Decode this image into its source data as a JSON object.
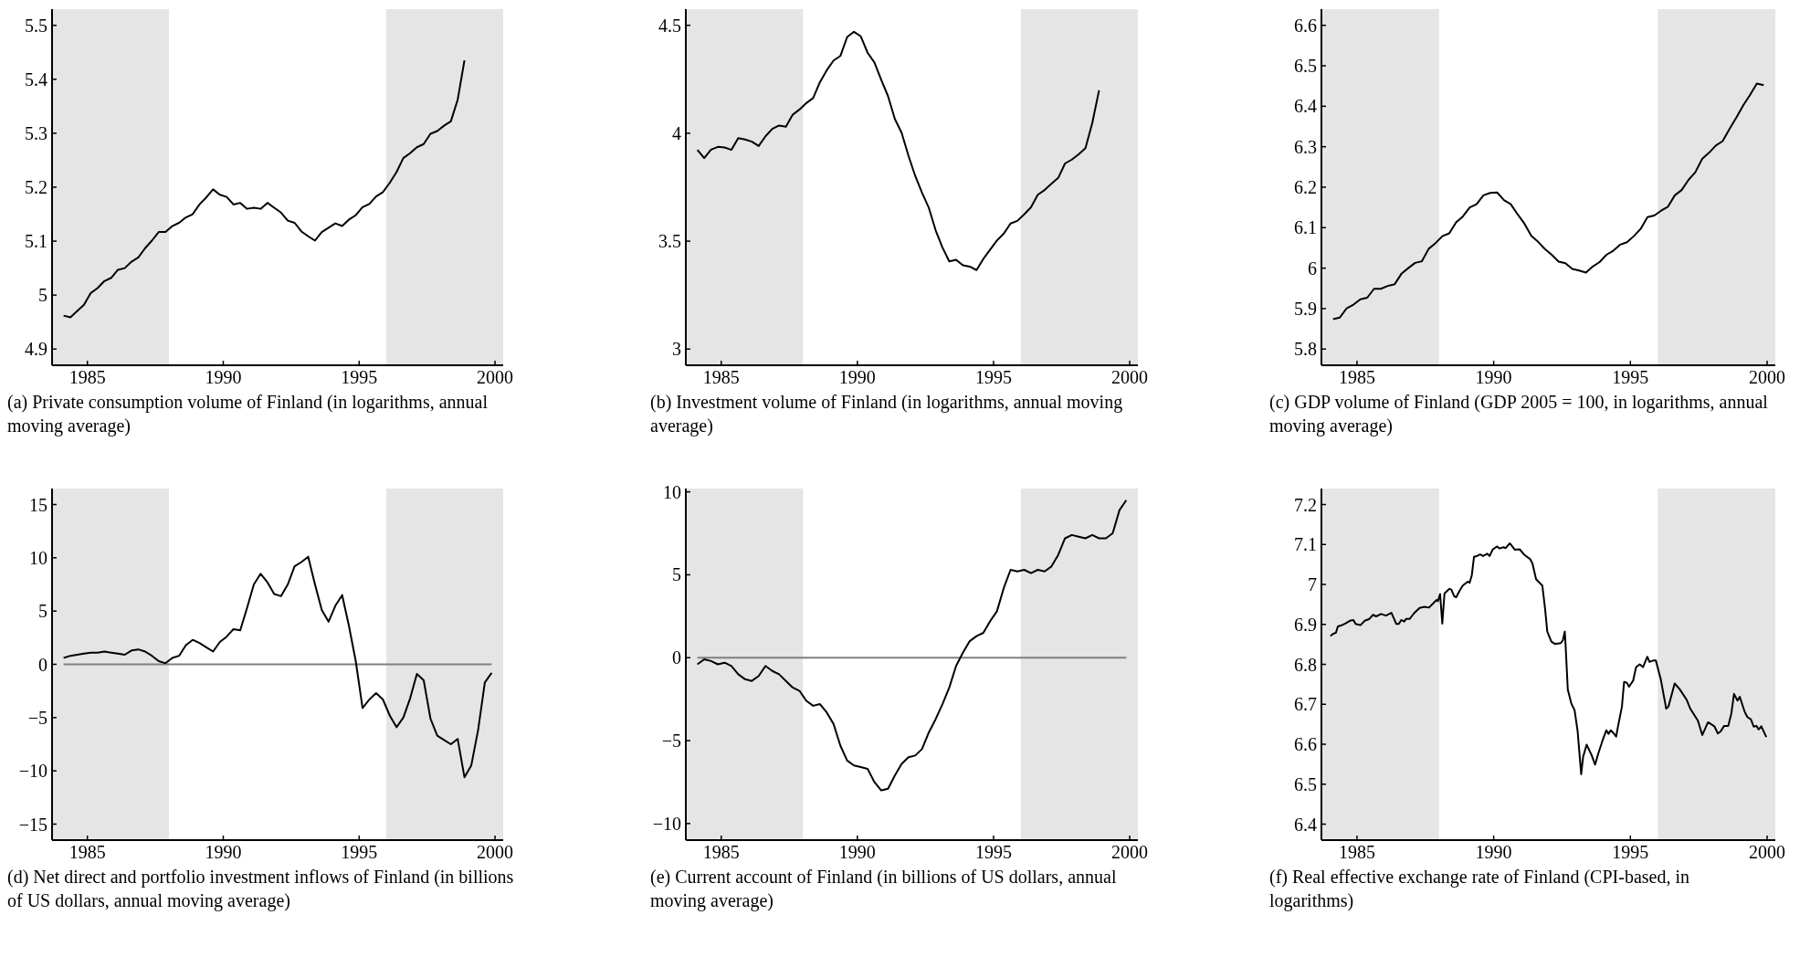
{
  "chart_data": [
    {
      "type": "line",
      "title": "(a) Private consumption volume of Finland (in logarithms, annual moving average)",
      "xlim": [
        1983.7,
        2000.3
      ],
      "xticks": [
        1985,
        1990,
        1995,
        2000
      ],
      "ylim": [
        4.87,
        5.53
      ],
      "yticks": [
        4.9,
        5,
        5.1,
        5.2,
        5.3,
        5.4,
        5.5
      ],
      "bands": [
        {
          "axis": "x",
          "from": 1983.7,
          "to": 1988,
          "color": "#e5e5e5"
        },
        {
          "axis": "x",
          "from": 1996,
          "to": 2000.3,
          "color": "#e5e5e5"
        }
      ],
      "series": [
        {
          "color": "#000000",
          "x": [
            1984.125,
            1984.375,
            1984.875,
            1985.125,
            1985.375,
            1985.625,
            1985.875,
            1986.125,
            1986.375,
            1986.625,
            1986.875,
            1987.125,
            1987.375,
            1987.625,
            1987.875,
            1988.125,
            1988.375,
            1988.625,
            1988.875,
            1989.125,
            1989.375,
            1989.625,
            1989.875,
            1990.125,
            1990.375,
            1990.625,
            1990.875,
            1991.125,
            1991.375,
            1991.625,
            1991.875,
            1992.125,
            1992.375,
            1992.625,
            1992.875,
            1993.125,
            1993.375,
            1993.625,
            1993.875,
            1994.125,
            1994.375,
            1994.625,
            1994.875,
            1995.125,
            1995.375,
            1995.625,
            1995.875,
            1996.125,
            1996.375,
            1996.625,
            1996.875,
            1997.125,
            1997.375,
            1997.625,
            1997.875,
            1998.125,
            1998.375,
            1998.625,
            1998.875
          ],
          "values": [
            4.962,
            4.959,
            4.982,
            5.004,
            5.013,
            5.026,
            5.032,
            5.047,
            5.05,
            5.062,
            5.07,
            5.087,
            5.101,
            5.117,
            5.117,
            5.128,
            5.134,
            5.144,
            5.15,
            5.168,
            5.181,
            5.196,
            5.186,
            5.182,
            5.168,
            5.171,
            5.16,
            5.162,
            5.16,
            5.171,
            5.162,
            5.153,
            5.138,
            5.134,
            5.118,
            5.109,
            5.101,
            5.117,
            5.125,
            5.133,
            5.128,
            5.14,
            5.148,
            5.163,
            5.169,
            5.183,
            5.191,
            5.208,
            5.228,
            5.254,
            5.263,
            5.274,
            5.28,
            5.299,
            5.304,
            5.314,
            5.322,
            5.362,
            5.435
          ]
        }
      ]
    },
    {
      "type": "line",
      "title": "(b) Investment volume of Finland (in logarithms, annual moving average)",
      "xlim": [
        1983.7,
        2000.3
      ],
      "xticks": [
        1985,
        1990,
        1995,
        2000
      ],
      "ylim": [
        2.925,
        4.575
      ],
      "yticks": [
        3,
        3.5,
        4,
        4.5
      ],
      "bands": [
        {
          "axis": "x",
          "from": 1983.7,
          "to": 1988,
          "color": "#e5e5e5"
        },
        {
          "axis": "x",
          "from": 1996,
          "to": 2000.3,
          "color": "#e5e5e5"
        }
      ],
      "series": [
        {
          "color": "#000000",
          "x": [
            1984.125,
            1984.375,
            1984.625,
            1984.875,
            1985.125,
            1985.375,
            1985.625,
            1985.875,
            1986.125,
            1986.375,
            1986.625,
            1986.875,
            1987.125,
            1987.375,
            1987.625,
            1987.875,
            1988.125,
            1988.375,
            1988.625,
            1988.875,
            1989.125,
            1989.375,
            1989.625,
            1989.875,
            1990.125,
            1990.375,
            1990.625,
            1990.875,
            1991.125,
            1991.375,
            1991.625,
            1991.875,
            1992.125,
            1992.375,
            1992.625,
            1992.875,
            1993.125,
            1993.375,
            1993.625,
            1993.875,
            1994.125,
            1994.375,
            1994.625,
            1994.875,
            1995.125,
            1995.375,
            1995.625,
            1995.875,
            1996.125,
            1996.375,
            1996.625,
            1996.875,
            1997.125,
            1997.375,
            1997.625,
            1997.875,
            1998.125,
            1998.375,
            1998.625,
            1998.875
          ],
          "values": [
            3.923,
            3.885,
            3.924,
            3.937,
            3.934,
            3.923,
            3.977,
            3.971,
            3.961,
            3.941,
            3.986,
            4.02,
            4.036,
            4.03,
            4.086,
            4.11,
            4.14,
            4.163,
            4.237,
            4.292,
            4.337,
            4.358,
            4.446,
            4.47,
            4.449,
            4.373,
            4.328,
            4.248,
            4.172,
            4.066,
            4.002,
            3.896,
            3.802,
            3.724,
            3.654,
            3.55,
            3.47,
            3.406,
            3.414,
            3.388,
            3.382,
            3.366,
            3.418,
            3.461,
            3.503,
            3.535,
            3.582,
            3.594,
            3.624,
            3.657,
            3.715,
            3.737,
            3.766,
            3.793,
            3.86,
            3.878,
            3.902,
            3.931,
            4.047,
            4.199
          ]
        }
      ]
    },
    {
      "type": "line",
      "title": "(c) GDP volume of Finland (GDP 2005 = 100, in logarithms, annual moving average)",
      "xlim": [
        1983.7,
        2000.3
      ],
      "xticks": [
        1985,
        1990,
        1995,
        2000
      ],
      "ylim": [
        5.76,
        6.64
      ],
      "yticks": [
        5.8,
        5.9,
        6,
        6.1,
        6.2,
        6.3,
        6.4,
        6.5,
        6.6
      ],
      "bands": [
        {
          "axis": "x",
          "from": 1983.7,
          "to": 1988,
          "color": "#e5e5e5"
        },
        {
          "axis": "x",
          "from": 1996,
          "to": 2000.3,
          "color": "#e5e5e5"
        }
      ],
      "series": [
        {
          "color": "#000000",
          "x": [
            1984.125,
            1984.375,
            1984.625,
            1984.875,
            1985.125,
            1985.375,
            1985.625,
            1985.875,
            1986.125,
            1986.375,
            1986.625,
            1986.875,
            1987.125,
            1987.375,
            1987.625,
            1987.875,
            1988.125,
            1988.375,
            1988.625,
            1988.875,
            1989.125,
            1989.375,
            1989.625,
            1989.875,
            1990.125,
            1990.375,
            1990.625,
            1990.875,
            1991.125,
            1991.375,
            1991.625,
            1991.875,
            1992.125,
            1992.375,
            1992.625,
            1992.875,
            1993.125,
            1993.375,
            1993.625,
            1993.875,
            1994.125,
            1994.375,
            1994.625,
            1994.875,
            1995.125,
            1995.375,
            1995.625,
            1995.875,
            1996.125,
            1996.375,
            1996.625,
            1996.875,
            1997.125,
            1997.375,
            1997.625,
            1997.875,
            1998.125,
            1998.375,
            1998.625,
            1998.875,
            1999.125,
            1999.375,
            1999.625,
            1999.875
          ],
          "values": [
            5.874,
            5.878,
            5.901,
            5.91,
            5.923,
            5.927,
            5.949,
            5.949,
            5.956,
            5.96,
            5.986,
            6.0,
            6.013,
            6.017,
            6.048,
            6.062,
            6.079,
            6.086,
            6.113,
            6.128,
            6.15,
            6.158,
            6.18,
            6.186,
            6.187,
            6.168,
            6.158,
            6.133,
            6.11,
            6.08,
            6.065,
            6.047,
            6.033,
            6.016,
            6.012,
            5.998,
            5.994,
            5.989,
            6.004,
            6.015,
            6.033,
            6.043,
            6.058,
            6.064,
            6.079,
            6.097,
            6.126,
            6.13,
            6.142,
            6.152,
            6.18,
            6.193,
            6.218,
            6.237,
            6.27,
            6.285,
            6.303,
            6.314,
            6.344,
            6.372,
            6.402,
            6.428,
            6.456,
            6.452
          ]
        }
      ]
    },
    {
      "type": "line",
      "title": "(d) Net direct and portfolio investment inflows of Finland (in billions of US dollars, annual moving average)",
      "xlim": [
        1983.7,
        2000.3
      ],
      "xticks": [
        1985,
        1990,
        1995,
        2000
      ],
      "ylim": [
        -16.5,
        16.5
      ],
      "yticks": [
        {
          "value": -15,
          "label": "−15"
        },
        {
          "value": -10,
          "label": "−10"
        },
        {
          "value": -5,
          "label": "−5"
        },
        0,
        5,
        10,
        15
      ],
      "bands": [
        {
          "axis": "x",
          "from": 1983.7,
          "to": 1988,
          "color": "#e5e5e5"
        },
        {
          "axis": "x",
          "from": 1996,
          "to": 2000.3,
          "color": "#e5e5e5"
        }
      ],
      "ref_lines": [
        {
          "axis": "y",
          "value": 0,
          "color": "#808080"
        }
      ],
      "series": [
        {
          "color": "#000000",
          "x": [
            1984.125,
            1984.375,
            1984.625,
            1984.875,
            1985.125,
            1985.375,
            1985.625,
            1985.875,
            1986.125,
            1986.375,
            1986.625,
            1986.875,
            1987.125,
            1987.375,
            1987.625,
            1987.875,
            1988.125,
            1988.375,
            1988.625,
            1988.875,
            1989.125,
            1989.375,
            1989.625,
            1989.875,
            1990.125,
            1990.375,
            1990.625,
            1990.875,
            1991.125,
            1991.375,
            1991.625,
            1991.875,
            1992.125,
            1992.375,
            1992.625,
            1992.875,
            1993.125,
            1993.375,
            1993.625,
            1993.875,
            1994.125,
            1994.375,
            1994.625,
            1994.875,
            1995.125,
            1995.375,
            1995.625,
            1995.875,
            1996.125,
            1996.375,
            1996.625,
            1996.875,
            1997.125,
            1997.375,
            1997.625,
            1997.875,
            1998.125,
            1998.375,
            1998.625,
            1998.875,
            1999.125,
            1999.375,
            1999.625,
            1999.875
          ],
          "values": [
            0.6,
            0.8,
            0.9,
            1.0,
            1.1,
            1.1,
            1.2,
            1.1,
            1.0,
            0.9,
            1.3,
            1.4,
            1.2,
            0.8,
            0.3,
            0.1,
            0.6,
            0.8,
            1.8,
            2.3,
            2.0,
            1.6,
            1.2,
            2.1,
            2.6,
            3.3,
            3.2,
            5.3,
            7.5,
            8.5,
            7.7,
            6.6,
            6.4,
            7.5,
            9.2,
            9.6,
            10.1,
            7.5,
            5.1,
            4.0,
            5.5,
            6.5,
            3.6,
            0.3,
            -4.1,
            -3.3,
            -2.7,
            -3.3,
            -4.8,
            -5.9,
            -5.0,
            -3.2,
            -0.9,
            -1.5,
            -5.1,
            -6.7,
            -7.1,
            -7.5,
            -7.0,
            -10.6,
            -9.5,
            -6.2,
            -1.7,
            -0.8
          ]
        }
      ]
    },
    {
      "type": "line",
      "title": "(e) Current account of Finland (in billions of US dollars, annual moving average)",
      "xlim": [
        1983.7,
        2000.3
      ],
      "xticks": [
        1985,
        1990,
        1995,
        2000
      ],
      "ylim": [
        -11,
        10.2
      ],
      "yticks": [
        {
          "value": -10,
          "label": "−10"
        },
        {
          "value": -5,
          "label": "−5"
        },
        0,
        5,
        10
      ],
      "bands": [
        {
          "axis": "x",
          "from": 1983.7,
          "to": 1988,
          "color": "#e5e5e5"
        },
        {
          "axis": "x",
          "from": 1996,
          "to": 2000.3,
          "color": "#e5e5e5"
        }
      ],
      "ref_lines": [
        {
          "axis": "y",
          "value": 0,
          "color": "#808080"
        }
      ],
      "series": [
        {
          "color": "#000000",
          "x": [
            1984.125,
            1984.375,
            1984.625,
            1984.875,
            1985.125,
            1985.375,
            1985.625,
            1985.875,
            1986.125,
            1986.375,
            1986.625,
            1986.875,
            1987.125,
            1987.375,
            1987.625,
            1987.875,
            1988.125,
            1988.375,
            1988.625,
            1988.875,
            1989.125,
            1989.375,
            1989.625,
            1989.875,
            1990.125,
            1990.375,
            1990.625,
            1990.875,
            1991.125,
            1991.375,
            1991.625,
            1991.875,
            1992.125,
            1992.375,
            1992.625,
            1992.875,
            1993.125,
            1993.375,
            1993.625,
            1993.875,
            1994.125,
            1994.375,
            1994.625,
            1994.875,
            1995.125,
            1995.375,
            1995.625,
            1995.875,
            1996.125,
            1996.375,
            1996.625,
            1996.875,
            1997.125,
            1997.375,
            1997.625,
            1997.875,
            1998.125,
            1998.375,
            1998.625,
            1998.875,
            1999.125,
            1999.375,
            1999.625,
            1999.875
          ],
          "values": [
            -0.4,
            -0.1,
            -0.2,
            -0.4,
            -0.3,
            -0.5,
            -1.0,
            -1.3,
            -1.4,
            -1.1,
            -0.5,
            -0.8,
            -1.0,
            -1.4,
            -1.8,
            -2.0,
            -2.6,
            -2.9,
            -2.8,
            -3.3,
            -4.0,
            -5.3,
            -6.2,
            -6.5,
            -6.6,
            -6.7,
            -7.5,
            -8.0,
            -7.9,
            -7.1,
            -6.4,
            -6.0,
            -5.9,
            -5.5,
            -4.5,
            -3.7,
            -2.8,
            -1.8,
            -0.5,
            0.3,
            1.0,
            1.3,
            1.5,
            2.2,
            2.8,
            4.2,
            5.3,
            5.2,
            5.3,
            5.1,
            5.3,
            5.2,
            5.5,
            6.2,
            7.2,
            7.4,
            7.3,
            7.2,
            7.4,
            7.2,
            7.2,
            7.5,
            8.9,
            9.5
          ]
        }
      ]
    },
    {
      "type": "line",
      "title": "(f) Real effective exchange rate of Finland (CPI-based, in logarithms)",
      "xlim": [
        1983.7,
        2000.3
      ],
      "xticks": [
        1985,
        1990,
        1995,
        2000
      ],
      "ylim": [
        6.36,
        7.24
      ],
      "yticks": [
        6.4,
        6.5,
        6.6,
        6.7,
        6.8,
        6.9,
        7,
        7.1,
        7.2
      ],
      "bands": [
        {
          "axis": "x",
          "from": 1983.7,
          "to": 1988,
          "color": "#e5e5e5"
        },
        {
          "axis": "x",
          "from": 1996,
          "to": 2000.3,
          "color": "#e5e5e5"
        }
      ],
      "series": [
        {
          "color": "#000000",
          "x": [
            1984.03,
            1984.12,
            1984.23,
            1984.3,
            1984.41,
            1984.57,
            1984.74,
            1984.87,
            1984.95,
            1985.13,
            1985.28,
            1985.44,
            1985.59,
            1985.7,
            1985.88,
            1986.06,
            1986.26,
            1986.44,
            1986.53,
            1986.62,
            1986.73,
            1986.8,
            1986.93,
            1987.09,
            1987.29,
            1987.47,
            1987.63,
            1987.78,
            1987.91,
            1987.96,
            1988.04,
            1988.12,
            1988.2,
            1988.38,
            1988.45,
            1988.56,
            1988.63,
            1988.76,
            1988.87,
            1989.05,
            1989.12,
            1989.2,
            1989.28,
            1989.38,
            1989.51,
            1989.61,
            1989.77,
            1989.85,
            1989.97,
            1990.13,
            1990.21,
            1990.36,
            1990.44,
            1990.59,
            1990.77,
            1990.95,
            1991.11,
            1991.34,
            1991.42,
            1991.55,
            1991.68,
            1991.78,
            1991.88,
            1991.96,
            1992.11,
            1992.24,
            1992.45,
            1992.53,
            1992.6,
            1992.63,
            1992.71,
            1992.84,
            1992.96,
            1993.07,
            1993.2,
            1993.27,
            1993.4,
            1993.58,
            1993.71,
            1993.81,
            1993.97,
            1994.12,
            1994.2,
            1994.28,
            1994.38,
            1994.48,
            1994.54,
            1994.69,
            1994.77,
            1994.87,
            1994.95,
            1995.1,
            1995.21,
            1995.34,
            1995.46,
            1995.62,
            1995.7,
            1995.85,
            1995.93,
            1996.11,
            1996.31,
            1996.39,
            1996.62,
            1996.8,
            1997.06,
            1997.19,
            1997.47,
            1997.63,
            1997.84,
            1998.07,
            1998.2,
            1998.3,
            1998.43,
            1998.58,
            1998.69,
            1998.79,
            1998.92,
            1999.0,
            1999.18,
            1999.28,
            1999.41,
            1999.51,
            1999.61,
            1999.69,
            1999.79,
            1999.97
          ],
          "values": [
            6.871,
            6.876,
            6.879,
            6.895,
            6.897,
            6.902,
            6.909,
            6.911,
            6.901,
            6.898,
            6.909,
            6.913,
            6.924,
            6.92,
            6.926,
            6.922,
            6.929,
            6.901,
            6.901,
            6.911,
            6.907,
            6.914,
            6.914,
            6.928,
            6.941,
            6.944,
            6.942,
            6.952,
            6.961,
            6.958,
            6.976,
            6.902,
            6.977,
            6.989,
            6.987,
            6.97,
            6.968,
            6.985,
            6.997,
            7.007,
            7.004,
            7.023,
            7.069,
            7.071,
            7.075,
            7.071,
            7.077,
            7.071,
            7.088,
            7.095,
            7.09,
            7.093,
            7.091,
            7.103,
            7.087,
            7.088,
            7.075,
            7.063,
            7.052,
            7.013,
            7.004,
            6.997,
            6.939,
            6.882,
            6.857,
            6.851,
            6.853,
            6.86,
            6.882,
            6.849,
            6.737,
            6.702,
            6.685,
            6.633,
            6.525,
            6.568,
            6.599,
            6.573,
            6.549,
            6.573,
            6.607,
            6.635,
            6.626,
            6.635,
            6.628,
            6.619,
            6.642,
            6.694,
            6.756,
            6.754,
            6.744,
            6.759,
            6.793,
            6.8,
            6.793,
            6.819,
            6.806,
            6.81,
            6.81,
            6.763,
            6.689,
            6.694,
            6.752,
            6.738,
            6.711,
            6.689,
            6.659,
            6.623,
            6.655,
            6.645,
            6.627,
            6.632,
            6.646,
            6.646,
            6.676,
            6.726,
            6.709,
            6.719,
            6.681,
            6.668,
            6.662,
            6.644,
            6.646,
            6.637,
            6.645,
            6.618
          ]
        }
      ]
    }
  ]
}
